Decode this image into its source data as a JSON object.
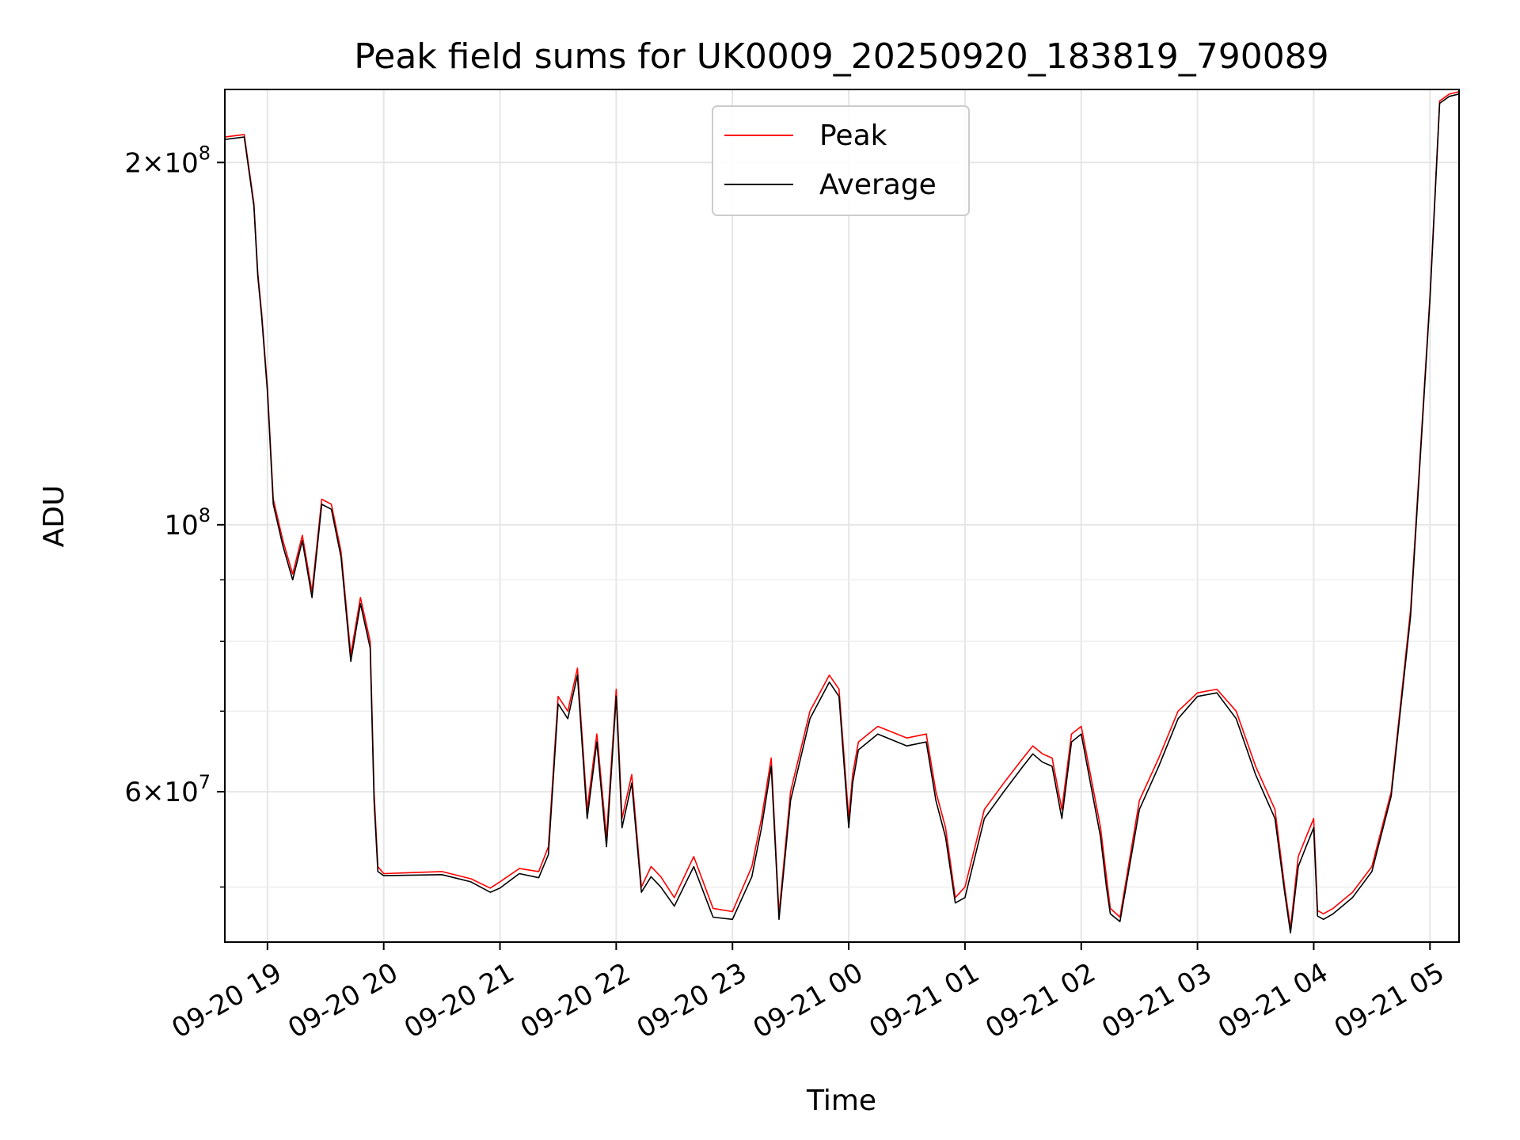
{
  "chart_data": {
    "type": "line",
    "title": "Peak field sums for UK0009_20250920_183819_790089",
    "xlabel": "Time",
    "ylabel": "ADU",
    "yscale": "log",
    "ylim": [
      45000000,
      230000000
    ],
    "xlim": [
      "2025-09-20 18:38",
      "2025-09-21 05:15"
    ],
    "grid": true,
    "legend": "upper center",
    "x_ticks": [
      "09-20 19",
      "09-20 20",
      "09-20 21",
      "09-20 22",
      "09-20 23",
      "09-21 00",
      "09-21 01",
      "09-21 02",
      "09-21 03",
      "09-21 04",
      "09-21 05"
    ],
    "y_ticks": [
      {
        "value": 200000000,
        "mantissa": "2",
        "exp": "8"
      },
      {
        "value": 100000000,
        "mantissa": "",
        "exp": "8"
      },
      {
        "value": 60000000,
        "mantissa": "6",
        "exp": "7"
      }
    ],
    "y_minor_ticks": [
      50000000,
      70000000,
      80000000,
      90000000
    ],
    "x": [
      "2025-09-20 18:38",
      "2025-09-20 18:48",
      "2025-09-20 18:53",
      "2025-09-20 18:55",
      "2025-09-20 18:57",
      "2025-09-20 19:00",
      "2025-09-20 19:03",
      "2025-09-20 19:08",
      "2025-09-20 19:13",
      "2025-09-20 19:18",
      "2025-09-20 19:23",
      "2025-09-20 19:28",
      "2025-09-20 19:33",
      "2025-09-20 19:38",
      "2025-09-20 19:43",
      "2025-09-20 19:48",
      "2025-09-20 19:53",
      "2025-09-20 19:55",
      "2025-09-20 19:57",
      "2025-09-20 20:00",
      "2025-09-20 20:30",
      "2025-09-20 20:45",
      "2025-09-20 20:55",
      "2025-09-20 21:00",
      "2025-09-20 21:10",
      "2025-09-20 21:20",
      "2025-09-20 21:25",
      "2025-09-20 21:30",
      "2025-09-20 21:35",
      "2025-09-20 21:40",
      "2025-09-20 21:45",
      "2025-09-20 21:50",
      "2025-09-20 21:55",
      "2025-09-20 22:00",
      "2025-09-20 22:03",
      "2025-09-20 22:08",
      "2025-09-20 22:13",
      "2025-09-20 22:18",
      "2025-09-20 22:23",
      "2025-09-20 22:30",
      "2025-09-20 22:40",
      "2025-09-20 22:50",
      "2025-09-20 23:00",
      "2025-09-20 23:10",
      "2025-09-20 23:15",
      "2025-09-20 23:20",
      "2025-09-20 23:24",
      "2025-09-20 23:30",
      "2025-09-20 23:40",
      "2025-09-20 23:50",
      "2025-09-20 23:55",
      "2025-09-21 00:00",
      "2025-09-21 00:02",
      "2025-09-21 00:05",
      "2025-09-21 00:15",
      "2025-09-21 00:30",
      "2025-09-21 00:40",
      "2025-09-21 00:45",
      "2025-09-21 00:50",
      "2025-09-21 00:55",
      "2025-09-21 01:00",
      "2025-09-21 01:10",
      "2025-09-21 01:20",
      "2025-09-21 01:30",
      "2025-09-21 01:35",
      "2025-09-21 01:40",
      "2025-09-21 01:45",
      "2025-09-21 01:50",
      "2025-09-21 01:55",
      "2025-09-21 02:00",
      "2025-09-21 02:10",
      "2025-09-21 02:13",
      "2025-09-21 02:15",
      "2025-09-21 02:20",
      "2025-09-21 02:30",
      "2025-09-21 02:40",
      "2025-09-21 02:50",
      "2025-09-21 03:00",
      "2025-09-21 03:10",
      "2025-09-21 03:20",
      "2025-09-21 03:30",
      "2025-09-21 03:40",
      "2025-09-21 03:45",
      "2025-09-21 03:48",
      "2025-09-21 03:52",
      "2025-09-21 03:56",
      "2025-09-21 04:00",
      "2025-09-21 04:02",
      "2025-09-21 04:05",
      "2025-09-21 04:10",
      "2025-09-21 04:20",
      "2025-09-21 04:30",
      "2025-09-21 04:40",
      "2025-09-21 04:50",
      "2025-09-21 05:00",
      "2025-09-21 05:05",
      "2025-09-21 05:10",
      "2025-09-21 05:15"
    ],
    "series": [
      {
        "name": "Peak",
        "color": "#ff0000",
        "values": [
          210000000,
          211000000,
          185000000,
          162000000,
          150000000,
          130000000,
          105000000,
          97000000,
          91000000,
          98000000,
          88000000,
          105000000,
          104000000,
          95000000,
          78000000,
          87000000,
          80000000,
          60000000,
          52000000,
          51300000,
          51500000,
          50800000,
          49900000,
          50500000,
          51800000,
          51500000,
          54000000,
          72000000,
          70000000,
          76000000,
          58000000,
          67000000,
          55000000,
          73000000,
          57000000,
          62000000,
          50000000,
          52000000,
          51000000,
          49000000,
          53000000,
          48000000,
          47700000,
          52000000,
          57000000,
          64000000,
          47500000,
          60000000,
          70000000,
          75000000,
          73000000,
          57000000,
          62000000,
          66000000,
          68000000,
          66500000,
          67000000,
          60000000,
          56000000,
          49000000,
          50000000,
          58000000,
          61000000,
          64000000,
          65500000,
          64500000,
          64000000,
          58000000,
          67000000,
          68000000,
          56000000,
          51000000,
          48000000,
          47200000,
          59000000,
          64000000,
          70000000,
          72500000,
          73000000,
          70000000,
          63000000,
          58000000,
          50000000,
          46200000,
          53000000,
          55000000,
          57000000,
          47800000,
          47500000,
          48000000,
          49500000,
          52000000,
          60000000,
          85000000,
          155000000,
          225000000,
          228000000,
          229000000
        ]
      },
      {
        "name": "Average",
        "color": "#000000",
        "values": [
          209000000,
          210000000,
          184000000,
          161000000,
          149000000,
          129000000,
          104000000,
          96000000,
          90000000,
          97000000,
          87000000,
          104000000,
          103000000,
          94000000,
          77000000,
          86000000,
          79000000,
          59000000,
          51500000,
          51100000,
          51200000,
          50500000,
          49500000,
          49900000,
          51300000,
          50900000,
          53200000,
          71000000,
          69000000,
          75000000,
          57000000,
          66000000,
          54000000,
          72000000,
          56000000,
          61000000,
          49500000,
          51000000,
          50000000,
          48200000,
          52000000,
          47200000,
          47000000,
          51000000,
          56000000,
          63000000,
          47000000,
          59000000,
          69000000,
          74000000,
          72000000,
          56000000,
          61000000,
          65000000,
          67000000,
          65500000,
          66000000,
          59000000,
          55000000,
          48500000,
          49000000,
          57000000,
          60000000,
          63000000,
          64500000,
          63500000,
          63000000,
          57000000,
          66000000,
          67000000,
          55000000,
          50000000,
          47500000,
          46800000,
          58000000,
          63000000,
          69000000,
          72000000,
          72500000,
          69000000,
          62000000,
          57000000,
          49500000,
          45800000,
          52000000,
          54000000,
          56000000,
          47300000,
          47000000,
          47500000,
          49000000,
          51500000,
          59500000,
          84000000,
          154000000,
          224000000,
          227000000,
          228000000
        ]
      }
    ]
  }
}
